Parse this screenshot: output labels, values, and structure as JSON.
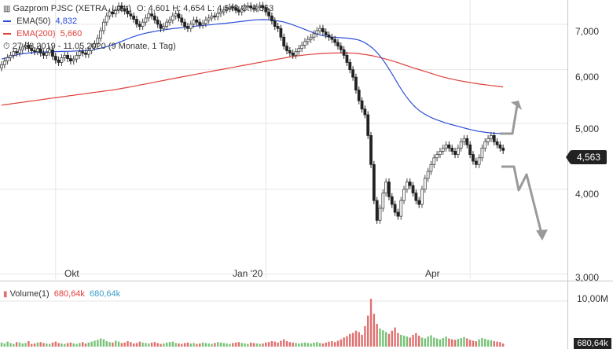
{
  "header": {
    "title": "Gazprom PJSC (XETRA, Last)",
    "ohlc": "O: 4,601  H: 4,654  L: 4,548  C: 4,563",
    "ema50_label": "EMA(50)",
    "ema50_value": "4,832",
    "ema200_label": "EMA(200)",
    "ema200_value": "5,660",
    "range_text": "27.08.2019 - 11.05.2020 (9 Monate, 1 Tag)"
  },
  "volume_legend": {
    "label": "Volume(1)",
    "value1": "680,64k",
    "value2": "680,64k"
  },
  "price_tag": "4,563",
  "volume_tag": "680,64k",
  "colors": {
    "up": "#3a9a4a",
    "down": "#222222",
    "ema50": "#2d4fd8",
    "ema200": "#e0403a",
    "vol_up": "#77c277",
    "vol_down": "#e07070",
    "arrow": "#9a9a9a",
    "grid": "#e6e6e6"
  },
  "chart_data": {
    "type": "candlestick",
    "price_axis": {
      "ticks": [
        3000,
        4000,
        5000,
        6000,
        7000
      ],
      "tick_labels": [
        "3,000",
        "4,000",
        "5,000",
        "6,000",
        "7,000"
      ],
      "scale": "log",
      "range": [
        2950,
        7600
      ]
    },
    "volume_axis": {
      "ticks": [
        10000000
      ],
      "tick_labels": [
        "10,00M"
      ]
    },
    "x_labels": [
      {
        "label": "Okt",
        "index": 18
      },
      {
        "label": "Jan '20",
        "index": 88
      },
      {
        "label": "Apr",
        "index": 156
      }
    ],
    "close": [
      6100,
      6180,
      6250,
      6300,
      6380,
      6350,
      6420,
      6480,
      6520,
      6450,
      6400,
      6380,
      6440,
      6350,
      6300,
      6360,
      6420,
      6280,
      6200,
      6150,
      6250,
      6300,
      6230,
      6180,
      6220,
      6300,
      6380,
      6350,
      6320,
      6400,
      6480,
      6550,
      6680,
      6850,
      7050,
      7200,
      7300,
      7250,
      7350,
      7450,
      7380,
      7320,
      7250,
      7200,
      7120,
      7000,
      6950,
      7050,
      7150,
      7250,
      7200,
      7100,
      7000,
      6900,
      6950,
      7050,
      7100,
      7200,
      7250,
      7150,
      7050,
      6950,
      6900,
      7000,
      7100,
      7050,
      6980,
      7020,
      7100,
      7150,
      7200,
      7180,
      7260,
      7300,
      7350,
      7380,
      7420,
      7400,
      7350,
      7300,
      7380,
      7420,
      7450,
      7400,
      7380,
      7420,
      7460,
      7400,
      7300,
      7200,
      7080,
      6950,
      6900,
      6700,
      6500,
      6400,
      6350,
      6300,
      6380,
      6450,
      6520,
      6600,
      6650,
      6700,
      6780,
      6850,
      6900,
      6820,
      6750,
      6700,
      6650,
      6580,
      6500,
      6420,
      6300,
      6150,
      6000,
      5850,
      5600,
      5400,
      5250,
      5150,
      4800,
      4350,
      3850,
      3600,
      3750,
      3950,
      4100,
      3900,
      3800,
      3700,
      3650,
      3850,
      4000,
      4100,
      4050,
      3950,
      3850,
      3800,
      4000,
      4150,
      4250,
      4350,
      4450,
      4500,
      4550,
      4600,
      4650,
      4600,
      4550,
      4500,
      4600,
      4700,
      4750,
      4650,
      4500,
      4400,
      4350,
      4450,
      4600,
      4700,
      4750,
      4800,
      4700,
      4650,
      4600,
      4563
    ],
    "ema50": [
      6220,
      6240,
      6260,
      6280,
      6300,
      6320,
      6330,
      6340,
      6350,
      6355,
      6360,
      6365,
      6370,
      6372,
      6375,
      6378,
      6380,
      6382,
      6384,
      6386,
      6388,
      6390,
      6392,
      6396,
      6400,
      6405,
      6412,
      6420,
      6430,
      6445,
      6460,
      6480,
      6500,
      6525,
      6550,
      6580,
      6610,
      6640,
      6670,
      6700,
      6725,
      6750,
      6770,
      6790,
      6805,
      6820,
      6835,
      6850,
      6862,
      6874,
      6885,
      6895,
      6905,
      6912,
      6920,
      6928,
      6936,
      6945,
      6955,
      6962,
      6970,
      6978,
      6985,
      6992,
      7000,
      7008,
      7016,
      7024,
      7032,
      7040,
      7050,
      7060,
      7070,
      7080,
      7090,
      7098,
      7105,
      7110,
      7112,
      7110,
      7105,
      7098,
      7088,
      7075,
      7060,
      7040,
      7015,
      6990,
      6960,
      6930,
      6900,
      6870,
      6840,
      6810,
      6780,
      6755,
      6735,
      6720,
      6710,
      6702,
      6696,
      6690,
      6685,
      6680,
      6672,
      6662,
      6650,
      6630,
      6600,
      6560,
      6510,
      6450,
      6380,
      6300,
      6210,
      6110,
      6000,
      5890,
      5780,
      5670,
      5570,
      5480,
      5400,
      5330,
      5270,
      5220,
      5180,
      5145,
      5115,
      5090,
      5065,
      5045,
      5025,
      5005,
      4990,
      4975,
      4960,
      4945,
      4930,
      4915,
      4900,
      4888,
      4876,
      4866,
      4858,
      4850,
      4844,
      4840,
      4836,
      4833,
      4832
    ],
    "ema200": [
      5320,
      5330,
      5340,
      5350,
      5360,
      5370,
      5380,
      5390,
      5400,
      5410,
      5420,
      5430,
      5440,
      5450,
      5460,
      5470,
      5480,
      5490,
      5500,
      5510,
      5520,
      5530,
      5540,
      5550,
      5560,
      5570,
      5580,
      5590,
      5600,
      5612,
      5625,
      5638,
      5652,
      5666,
      5680,
      5695,
      5710,
      5725,
      5740,
      5755,
      5770,
      5785,
      5800,
      5815,
      5830,
      5845,
      5860,
      5875,
      5890,
      5905,
      5920,
      5935,
      5950,
      5965,
      5980,
      5995,
      6010,
      6025,
      6040,
      6055,
      6070,
      6085,
      6100,
      6115,
      6130,
      6145,
      6160,
      6175,
      6190,
      6205,
      6220,
      6235,
      6250,
      6265,
      6280,
      6290,
      6300,
      6310,
      6318,
      6326,
      6332,
      6338,
      6342,
      6346,
      6348,
      6350,
      6350,
      6350,
      6348,
      6345,
      6340,
      6330,
      6318,
      6305,
      6290,
      6270,
      6250,
      6228,
      6205,
      6180,
      6155,
      6128,
      6100,
      6072,
      6045,
      6020,
      5995,
      5970,
      5945,
      5920,
      5895,
      5870,
      5850,
      5830,
      5812,
      5795,
      5780,
      5766,
      5752,
      5740,
      5728,
      5716,
      5706,
      5696,
      5686,
      5677,
      5668,
      5660
    ],
    "volume_m": [
      0.9,
      0.7,
      1.1,
      0.8,
      0.6,
      1.0,
      0.9,
      0.7,
      0.8,
      1.2,
      0.6,
      0.7,
      0.9,
      1.0,
      0.8,
      0.7,
      0.6,
      0.9,
      1.1,
      0.8,
      0.7,
      0.6,
      0.8,
      0.9,
      0.7,
      0.6,
      0.8,
      1.0,
      0.7,
      0.9,
      1.1,
      1.3,
      1.5,
      1.8,
      1.6,
      1.2,
      1.0,
      0.9,
      1.3,
      1.1,
      0.8,
      0.9,
      1.2,
      1.0,
      0.7,
      0.8,
      1.1,
      0.9,
      0.8,
      0.7,
      0.9,
      1.0,
      0.8,
      0.6,
      0.7,
      0.9,
      1.0,
      1.1,
      0.8,
      0.7,
      0.6,
      0.8,
      0.9,
      0.7,
      0.8,
      0.6,
      0.7,
      0.9,
      0.8,
      0.7,
      0.6,
      0.8,
      1.0,
      0.9,
      0.8,
      0.7,
      0.6,
      0.8,
      0.9,
      1.0,
      0.8,
      0.7,
      0.6,
      0.9,
      0.8,
      0.7,
      0.6,
      0.7,
      0.9,
      1.0,
      1.2,
      1.1,
      0.9,
      1.3,
      1.6,
      1.2,
      1.0,
      0.9,
      0.8,
      0.7,
      0.8,
      0.9,
      0.8,
      0.7,
      0.9,
      1.0,
      0.8,
      0.7,
      0.9,
      1.1,
      1.2,
      1.0,
      1.3,
      1.6,
      2.0,
      2.3,
      2.8,
      3.0,
      3.5,
      3.2,
      2.6,
      4.5,
      6.8,
      10.5,
      7.2,
      5.0,
      4.0,
      3.6,
      3.2,
      2.8,
      3.5,
      4.2,
      3.0,
      2.6,
      2.4,
      2.2,
      2.0,
      2.6,
      3.0,
      2.4,
      2.0,
      1.8,
      2.2,
      2.5,
      2.0,
      1.8,
      1.6,
      1.9,
      2.2,
      1.8,
      1.6,
      1.5,
      1.7,
      1.9,
      2.1,
      1.8,
      1.5,
      1.3,
      1.2,
      1.6,
      1.9,
      1.7,
      1.5,
      1.4,
      1.2,
      1.1,
      1.0,
      0.68
    ]
  }
}
